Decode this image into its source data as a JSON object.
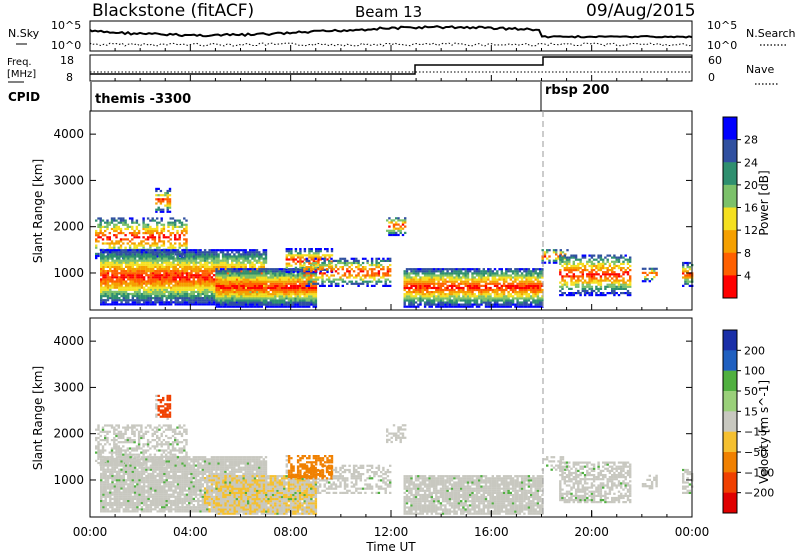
{
  "header": {
    "station": "Blackstone (fitACF)",
    "beam": "Beam 13",
    "date": "09/Aug/2015"
  },
  "top_panels": {
    "nsky_label": "N.Sky",
    "nsearch_label": "N.Search",
    "freq_label_1": "Freq.",
    "freq_label_2": "[MHz]",
    "nave_label": "Nave",
    "cpid_label": "CPID",
    "left_ticks_n": [
      "10^5",
      "10^0"
    ],
    "right_ticks_n": [
      "10^5",
      "10^0"
    ],
    "left_ticks_freq": [
      "18",
      "8"
    ],
    "right_ticks_nave": [
      "60",
      "0"
    ],
    "cpid_modes": [
      {
        "label": "themis -3300",
        "start_hour": 0
      },
      {
        "label": "rbsp 200",
        "start_hour": 18
      }
    ]
  },
  "chart_data": [
    {
      "type": "heatmap",
      "name": "power",
      "ylabel": "Slant Range [km]",
      "y_ticks": [
        "1000",
        "2000",
        "3000",
        "4000"
      ],
      "ylim": [
        200,
        4500
      ],
      "xlim_hours": [
        0,
        24
      ],
      "colorbar_label": "Power [dB]",
      "colorbar_ticks": [
        "4",
        "8",
        "12",
        "16",
        "20",
        "24",
        "28"
      ],
      "colorbar_colors": [
        "#0000ff",
        "#3050a0",
        "#2f8f6f",
        "#7cc16a",
        "#f5e020",
        "#f5a000",
        "#ff6000",
        "#ff0000"
      ]
    },
    {
      "type": "heatmap",
      "name": "velocity",
      "ylabel": "Slant Range [km]",
      "y_ticks": [
        "1000",
        "2000",
        "3000",
        "4000"
      ],
      "ylim": [
        200,
        4500
      ],
      "xlim_hours": [
        0,
        24
      ],
      "xlabel": "Time UT",
      "x_ticks": [
        "00:00",
        "04:00",
        "08:00",
        "12:00",
        "16:00",
        "20:00",
        "00:00"
      ],
      "colorbar_label": "Velocity [m s^-1]",
      "colorbar_ticks": [
        "200",
        "100",
        "50",
        "15",
        "-15",
        "-50",
        "-100",
        "-200"
      ],
      "colorbar_colors": [
        "#1a2fa8",
        "#2060c0",
        "#50b040",
        "#9ad07a",
        "#c8c8c0",
        "#f5c030",
        "#f08000",
        "#f04000",
        "#e00000"
      ]
    }
  ]
}
